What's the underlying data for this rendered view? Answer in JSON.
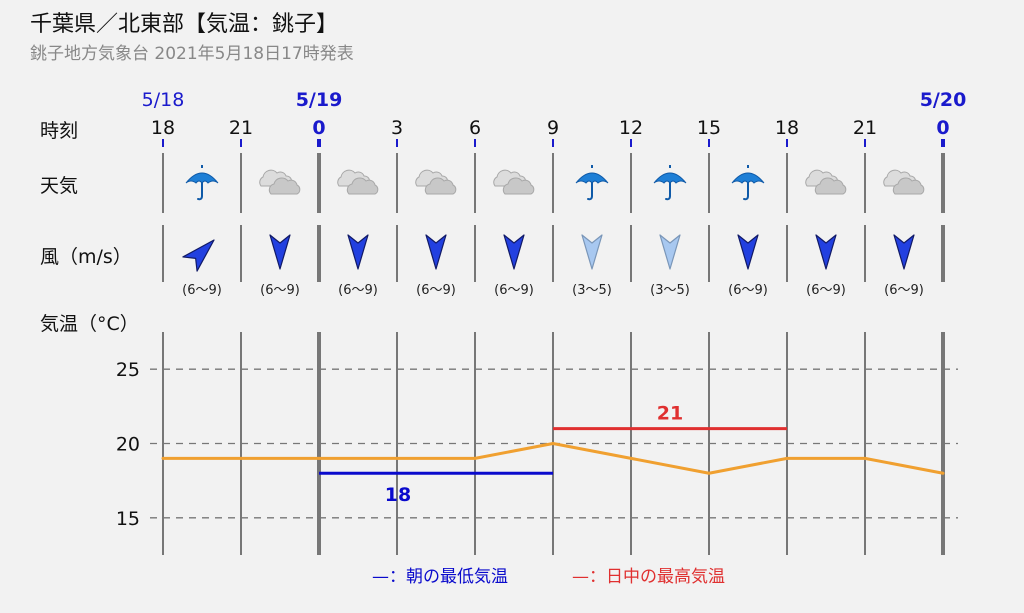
{
  "header": {
    "title": "千葉県／北東部【気温：銚子】",
    "subtitle": "銚子地方気象台 2021年5月18日17時発表"
  },
  "row_labels": {
    "time": "時刻",
    "weather": "天気",
    "wind": "風（m/s）",
    "temp": "気温（°C）"
  },
  "colors": {
    "day_boundary": "#1a1acc",
    "line": "#f0a030",
    "min_marker": "#0a0acc",
    "max_marker": "#e03030",
    "grid": "#777777",
    "wind_strong": "#2240e0",
    "wind_weak": "#a8c8f0"
  },
  "time_axis": {
    "hours": [
      "18",
      "21",
      "0",
      "3",
      "6",
      "9",
      "12",
      "15",
      "18",
      "21",
      "0"
    ],
    "date_labels": [
      {
        "text": "5/18",
        "at": 0,
        "bold": false
      },
      {
        "text": "5/19",
        "at": 2,
        "bold": true
      },
      {
        "text": "5/20",
        "at": 10,
        "bold": true
      }
    ],
    "bold_hours": [
      2,
      10
    ]
  },
  "weather": [
    "umbrella-icon",
    "cloud-icon",
    "cloud-icon",
    "cloud-icon",
    "cloud-icon",
    "umbrella-icon",
    "umbrella-icon",
    "umbrella-icon",
    "cloud-icon",
    "cloud-icon"
  ],
  "wind": [
    {
      "dir": "SW",
      "range": "(6～9)",
      "strength": "strong"
    },
    {
      "dir": "N",
      "range": "(6～9)",
      "strength": "strong"
    },
    {
      "dir": "N",
      "range": "(6～9)",
      "strength": "strong"
    },
    {
      "dir": "N",
      "range": "(6～9)",
      "strength": "strong"
    },
    {
      "dir": "N",
      "range": "(6～9)",
      "strength": "strong"
    },
    {
      "dir": "N",
      "range": "(3～5)",
      "strength": "weak"
    },
    {
      "dir": "N",
      "range": "(3～5)",
      "strength": "weak"
    },
    {
      "dir": "N",
      "range": "(6～9)",
      "strength": "strong"
    },
    {
      "dir": "N",
      "range": "(6～9)",
      "strength": "strong"
    },
    {
      "dir": "N",
      "range": "(6～9)",
      "strength": "strong"
    }
  ],
  "chart_data": {
    "type": "line",
    "x": [
      "5/18 18",
      "5/18 21",
      "5/19 0",
      "5/19 3",
      "5/19 6",
      "5/19 9",
      "5/19 12",
      "5/19 15",
      "5/19 18",
      "5/19 21",
      "5/20 0"
    ],
    "series": [
      {
        "values": [
          19,
          19,
          19,
          19,
          19,
          20,
          19,
          18,
          19,
          19,
          18
        ]
      }
    ],
    "yticks": [
      15,
      20,
      25
    ],
    "ylim": [
      12.5,
      27.5
    ],
    "grid": true,
    "min_temp": {
      "value": 18,
      "label": "18",
      "from": 2,
      "to": 5
    },
    "max_temp": {
      "value": 21,
      "label": "21",
      "from": 5,
      "to": 8
    },
    "legend": [
      {
        "mark": "—",
        "text": "：朝の最低気温",
        "color": "#0a0acc"
      },
      {
        "mark": "—",
        "text": "：日中の最高気温",
        "color": "#e03030"
      }
    ]
  }
}
